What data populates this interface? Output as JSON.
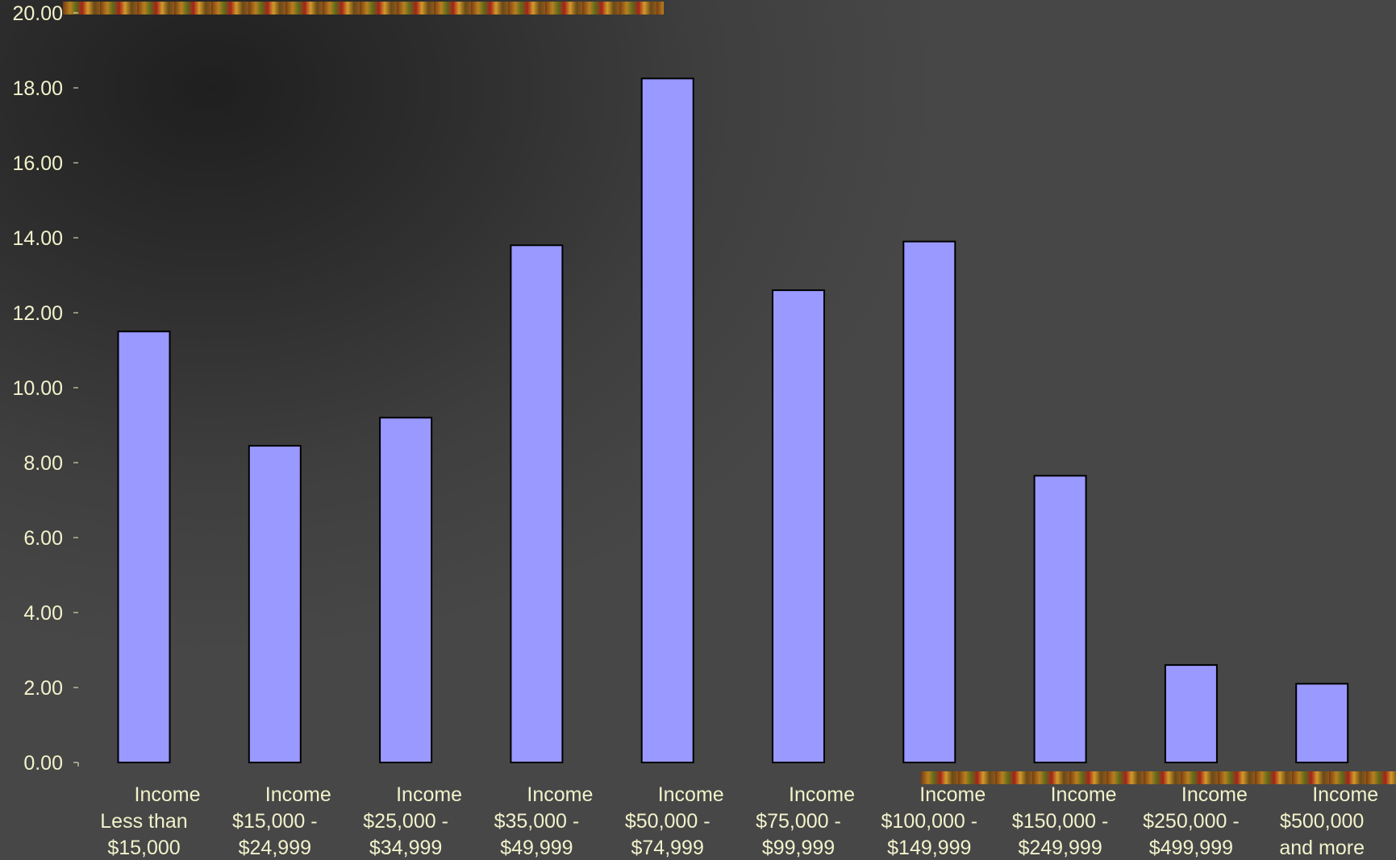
{
  "chart_data": {
    "type": "bar",
    "title": "",
    "xlabel": "",
    "ylabel": "",
    "ylim": [
      0,
      20
    ],
    "yticks": [
      "0.00",
      "2.00",
      "4.00",
      "6.00",
      "8.00",
      "10.00",
      "12.00",
      "14.00",
      "16.00",
      "18.00",
      "20.00"
    ],
    "categories": [
      [
        "Income",
        "Less than",
        "$15,000"
      ],
      [
        "Income",
        "$15,000 -",
        "$24,999"
      ],
      [
        "Income",
        "$25,000 -",
        "$34,999"
      ],
      [
        "Income",
        "$35,000 -",
        "$49,999"
      ],
      [
        "Income",
        "$50,000 -",
        "$74,999"
      ],
      [
        "Income",
        "$75,000 -",
        "$99,999"
      ],
      [
        "Income",
        "$100,000 -",
        "$149,999"
      ],
      [
        "Income",
        "$150,000 -",
        "$249,999"
      ],
      [
        "Income",
        "$250,000 -",
        "$499,999"
      ],
      [
        "Income",
        "$500,000",
        "and more"
      ]
    ],
    "values": [
      11.5,
      8.45,
      9.2,
      13.8,
      18.25,
      12.6,
      13.9,
      7.65,
      2.6,
      2.1
    ],
    "bar_color": "#9999ff",
    "bar_stroke": "#000000",
    "text_color": "#f2f2cc",
    "grid": false,
    "legend": "none"
  }
}
